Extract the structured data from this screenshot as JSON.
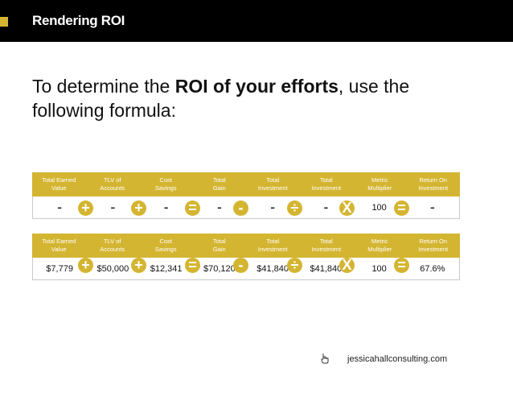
{
  "header": {
    "title": "Rendering ROI"
  },
  "intro": {
    "prefix": "To determine the ",
    "bold": "ROI of your efforts",
    "suffix": ", use the following formula:"
  },
  "columns": [
    [
      "Total Earned",
      "Value"
    ],
    [
      "TLV of",
      "Accounts"
    ],
    [
      "Cost",
      "Savings"
    ],
    [
      "Total",
      "Gain"
    ],
    [
      "Total",
      "Investment"
    ],
    [
      "Total",
      "Investment"
    ],
    [
      "Metric",
      "Multiplier"
    ],
    [
      "Return On",
      "Investment"
    ]
  ],
  "operators": [
    "+",
    "+",
    "=",
    "-",
    "÷",
    "X",
    "="
  ],
  "template_row": [
    "-",
    "-",
    "-",
    "-",
    "-",
    "-",
    "100",
    "-"
  ],
  "example_row": [
    "$7,779",
    "$50,000",
    "$12,341",
    "$70,120",
    "$41,840",
    "$41,840",
    "100",
    "67.6%"
  ],
  "footer": {
    "url": "jessicahallconsulting.com",
    "icon": "cursor-hand-icon"
  },
  "colors": {
    "accent": "#d4b531",
    "header_bg": "#000000"
  }
}
